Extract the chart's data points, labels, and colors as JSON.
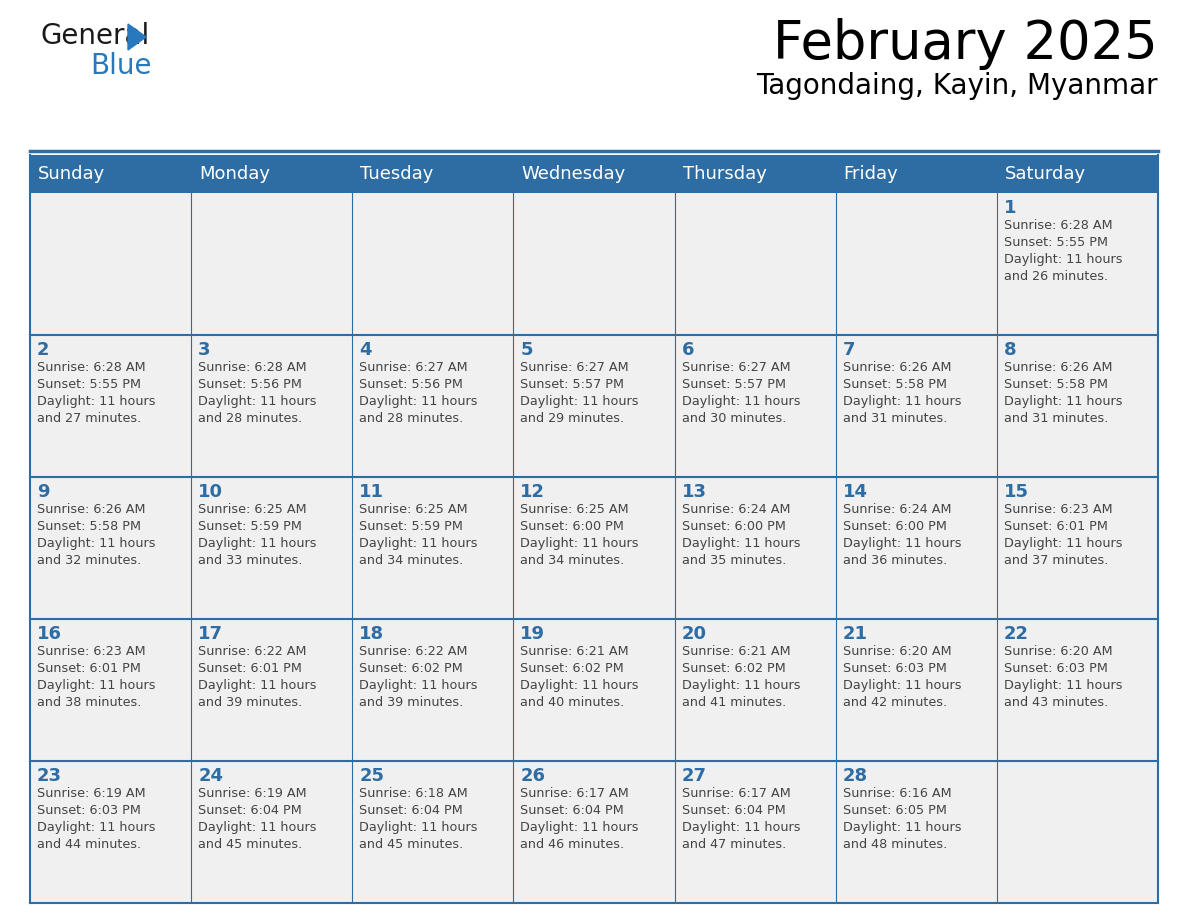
{
  "title": "February 2025",
  "subtitle": "Tagondaing, Kayin, Myanmar",
  "days_of_week": [
    "Sunday",
    "Monday",
    "Tuesday",
    "Wednesday",
    "Thursday",
    "Friday",
    "Saturday"
  ],
  "header_bg": "#2E6DA4",
  "header_text": "#FFFFFF",
  "cell_bg": "#F0F0F0",
  "day_number_color": "#2E6DA4",
  "text_color": "#444444",
  "border_color": "#2E6DA4",
  "logo_dark_color": "#1a1a1a",
  "logo_blue_color": "#2878BE",
  "calendar": [
    [
      null,
      null,
      null,
      null,
      null,
      null,
      1
    ],
    [
      2,
      3,
      4,
      5,
      6,
      7,
      8
    ],
    [
      9,
      10,
      11,
      12,
      13,
      14,
      15
    ],
    [
      16,
      17,
      18,
      19,
      20,
      21,
      22
    ],
    [
      23,
      24,
      25,
      26,
      27,
      28,
      null
    ]
  ],
  "sun_data": {
    "1": {
      "rise": "6:28 AM",
      "set": "5:55 PM",
      "d1": "Daylight: 11 hours",
      "d2": "and 26 minutes."
    },
    "2": {
      "rise": "6:28 AM",
      "set": "5:55 PM",
      "d1": "Daylight: 11 hours",
      "d2": "and 27 minutes."
    },
    "3": {
      "rise": "6:28 AM",
      "set": "5:56 PM",
      "d1": "Daylight: 11 hours",
      "d2": "and 28 minutes."
    },
    "4": {
      "rise": "6:27 AM",
      "set": "5:56 PM",
      "d1": "Daylight: 11 hours",
      "d2": "and 28 minutes."
    },
    "5": {
      "rise": "6:27 AM",
      "set": "5:57 PM",
      "d1": "Daylight: 11 hours",
      "d2": "and 29 minutes."
    },
    "6": {
      "rise": "6:27 AM",
      "set": "5:57 PM",
      "d1": "Daylight: 11 hours",
      "d2": "and 30 minutes."
    },
    "7": {
      "rise": "6:26 AM",
      "set": "5:58 PM",
      "d1": "Daylight: 11 hours",
      "d2": "and 31 minutes."
    },
    "8": {
      "rise": "6:26 AM",
      "set": "5:58 PM",
      "d1": "Daylight: 11 hours",
      "d2": "and 31 minutes."
    },
    "9": {
      "rise": "6:26 AM",
      "set": "5:58 PM",
      "d1": "Daylight: 11 hours",
      "d2": "and 32 minutes."
    },
    "10": {
      "rise": "6:25 AM",
      "set": "5:59 PM",
      "d1": "Daylight: 11 hours",
      "d2": "and 33 minutes."
    },
    "11": {
      "rise": "6:25 AM",
      "set": "5:59 PM",
      "d1": "Daylight: 11 hours",
      "d2": "and 34 minutes."
    },
    "12": {
      "rise": "6:25 AM",
      "set": "6:00 PM",
      "d1": "Daylight: 11 hours",
      "d2": "and 34 minutes."
    },
    "13": {
      "rise": "6:24 AM",
      "set": "6:00 PM",
      "d1": "Daylight: 11 hours",
      "d2": "and 35 minutes."
    },
    "14": {
      "rise": "6:24 AM",
      "set": "6:00 PM",
      "d1": "Daylight: 11 hours",
      "d2": "and 36 minutes."
    },
    "15": {
      "rise": "6:23 AM",
      "set": "6:01 PM",
      "d1": "Daylight: 11 hours",
      "d2": "and 37 minutes."
    },
    "16": {
      "rise": "6:23 AM",
      "set": "6:01 PM",
      "d1": "Daylight: 11 hours",
      "d2": "and 38 minutes."
    },
    "17": {
      "rise": "6:22 AM",
      "set": "6:01 PM",
      "d1": "Daylight: 11 hours",
      "d2": "and 39 minutes."
    },
    "18": {
      "rise": "6:22 AM",
      "set": "6:02 PM",
      "d1": "Daylight: 11 hours",
      "d2": "and 39 minutes."
    },
    "19": {
      "rise": "6:21 AM",
      "set": "6:02 PM",
      "d1": "Daylight: 11 hours",
      "d2": "and 40 minutes."
    },
    "20": {
      "rise": "6:21 AM",
      "set": "6:02 PM",
      "d1": "Daylight: 11 hours",
      "d2": "and 41 minutes."
    },
    "21": {
      "rise": "6:20 AM",
      "set": "6:03 PM",
      "d1": "Daylight: 11 hours",
      "d2": "and 42 minutes."
    },
    "22": {
      "rise": "6:20 AM",
      "set": "6:03 PM",
      "d1": "Daylight: 11 hours",
      "d2": "and 43 minutes."
    },
    "23": {
      "rise": "6:19 AM",
      "set": "6:03 PM",
      "d1": "Daylight: 11 hours",
      "d2": "and 44 minutes."
    },
    "24": {
      "rise": "6:19 AM",
      "set": "6:04 PM",
      "d1": "Daylight: 11 hours",
      "d2": "and 45 minutes."
    },
    "25": {
      "rise": "6:18 AM",
      "set": "6:04 PM",
      "d1": "Daylight: 11 hours",
      "d2": "and 45 minutes."
    },
    "26": {
      "rise": "6:17 AM",
      "set": "6:04 PM",
      "d1": "Daylight: 11 hours",
      "d2": "and 46 minutes."
    },
    "27": {
      "rise": "6:17 AM",
      "set": "6:04 PM",
      "d1": "Daylight: 11 hours",
      "d2": "and 47 minutes."
    },
    "28": {
      "rise": "6:16 AM",
      "set": "6:05 PM",
      "d1": "Daylight: 11 hours",
      "d2": "and 48 minutes."
    }
  }
}
